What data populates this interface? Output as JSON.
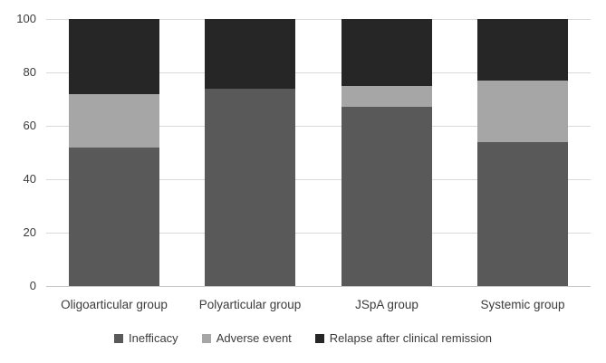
{
  "chart_data": {
    "type": "bar",
    "stacked": true,
    "title": "",
    "categories": [
      "Oligoarticular group",
      "Polyarticular group",
      "JSpA group",
      "Systemic group"
    ],
    "series": [
      {
        "name": "Inefficacy",
        "color": "#595959",
        "values": [
          52,
          74,
          67,
          54
        ]
      },
      {
        "name": "Adverse event",
        "color": "#a6a6a6",
        "values": [
          20,
          0,
          8,
          23
        ]
      },
      {
        "name": "Relapse after clinical remission",
        "color": "#262626",
        "values": [
          28,
          26,
          25,
          23
        ]
      }
    ],
    "xlabel": "",
    "ylabel": "",
    "ylim": [
      0,
      100
    ],
    "yticks": [
      "0",
      "20",
      "40",
      "60",
      "80",
      "100"
    ],
    "grid": "horizontal",
    "gridline_color": "#d9d9d9",
    "baseline_color": "#c9c9c9",
    "text_color": "#3b3b3b",
    "background_color": "#ffffff",
    "legend_position": "bottom"
  }
}
